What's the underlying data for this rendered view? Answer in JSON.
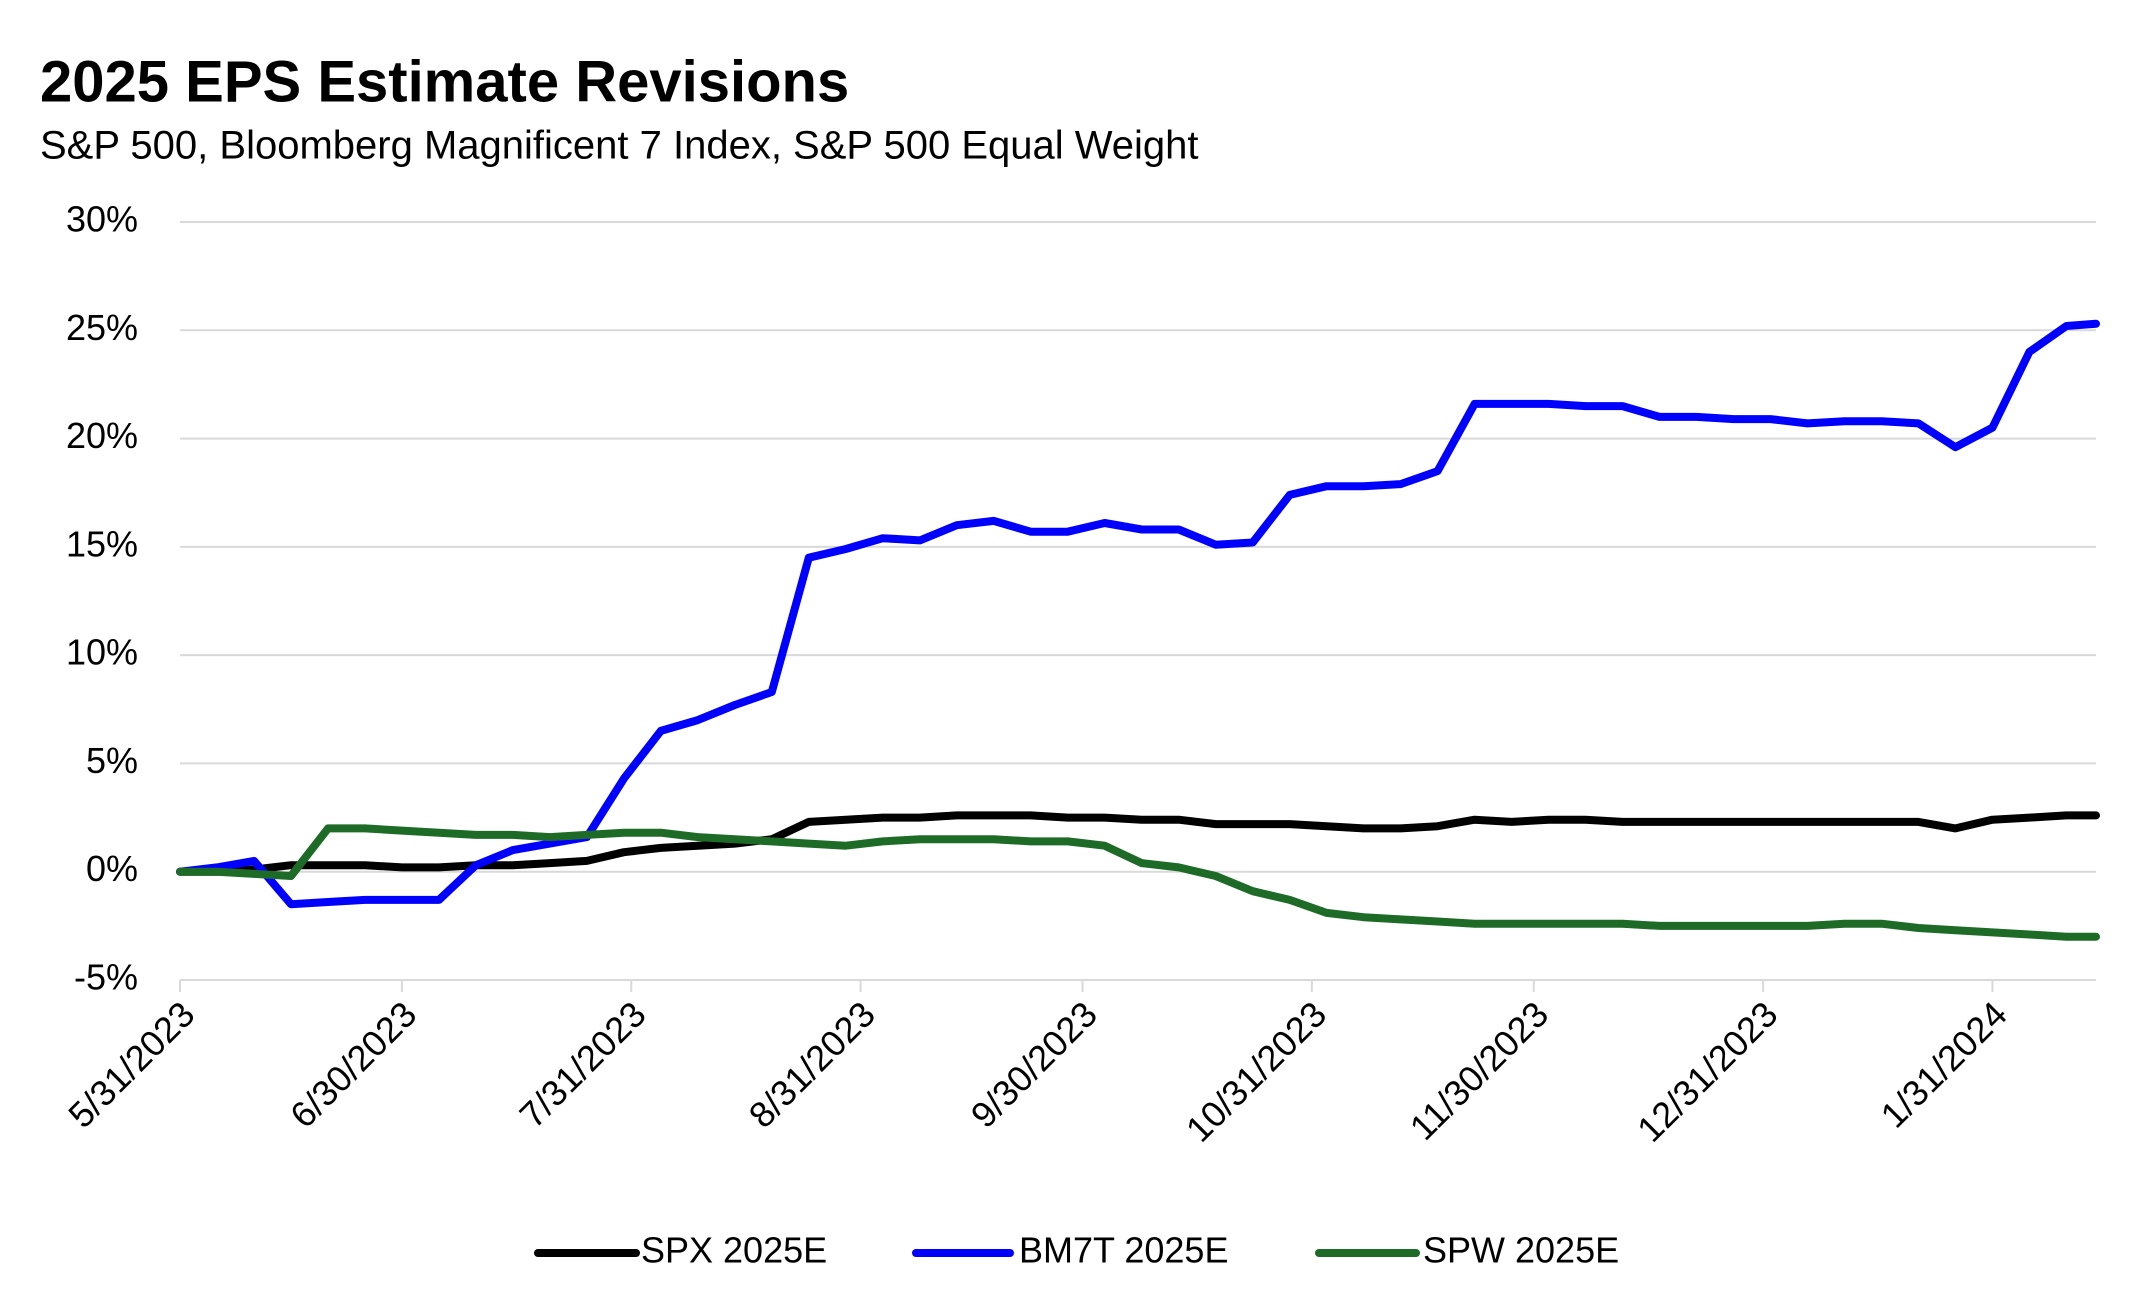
{
  "chart_data": {
    "type": "line",
    "title": "2025 EPS Estimate Revisions",
    "subtitle": "S&P 500, Bloomberg Magnificent 7 Index, S&P 500 Equal Weight",
    "x": [
      "5/31/2023",
      "6/5/2023",
      "6/10/2023",
      "6/15/2023",
      "6/20/2023",
      "6/25/2023",
      "6/30/2023",
      "7/5/2023",
      "7/10/2023",
      "7/15/2023",
      "7/20/2023",
      "7/25/2023",
      "7/30/2023",
      "8/4/2023",
      "8/9/2023",
      "8/14/2023",
      "8/19/2023",
      "8/24/2023",
      "8/29/2023",
      "9/3/2023",
      "9/8/2023",
      "9/13/2023",
      "9/18/2023",
      "9/23/2023",
      "9/28/2023",
      "10/3/2023",
      "10/8/2023",
      "10/13/2023",
      "10/18/2023",
      "10/23/2023",
      "10/28/2023",
      "11/2/2023",
      "11/7/2023",
      "11/12/2023",
      "11/17/2023",
      "11/22/2023",
      "11/27/2023",
      "12/2/2023",
      "12/7/2023",
      "12/12/2023",
      "12/17/2023",
      "12/22/2023",
      "12/27/2023",
      "1/1/2024",
      "1/6/2024",
      "1/11/2024",
      "1/16/2024",
      "1/21/2024",
      "1/26/2024",
      "1/31/2024",
      "2/5/2024",
      "2/10/2024",
      "2/14/2024"
    ],
    "series": [
      {
        "name": "SPX 2025E",
        "color": "#000000",
        "values": [
          0,
          0,
          0.1,
          0.3,
          0.3,
          0.3,
          0.2,
          0.2,
          0.3,
          0.3,
          0.4,
          0.5,
          0.9,
          1.1,
          1.2,
          1.3,
          1.5,
          2.3,
          2.4,
          2.5,
          2.5,
          2.6,
          2.6,
          2.6,
          2.5,
          2.5,
          2.4,
          2.4,
          2.2,
          2.2,
          2.2,
          2.1,
          2.0,
          2.0,
          2.1,
          2.4,
          2.3,
          2.4,
          2.4,
          2.3,
          2.3,
          2.3,
          2.3,
          2.3,
          2.3,
          2.3,
          2.3,
          2.3,
          2.0,
          2.4,
          2.5,
          2.6,
          2.6
        ]
      },
      {
        "name": "BM7T 2025E",
        "color": "#0000ff",
        "values": [
          0,
          0.2,
          0.5,
          -1.5,
          -1.4,
          -1.3,
          -1.3,
          -1.3,
          0.3,
          1.0,
          1.3,
          1.6,
          4.3,
          6.5,
          7.0,
          7.7,
          8.3,
          14.5,
          14.9,
          15.4,
          15.3,
          16.0,
          16.2,
          15.7,
          15.7,
          16.1,
          15.8,
          15.8,
          15.1,
          15.2,
          17.4,
          17.8,
          17.8,
          17.9,
          18.5,
          21.6,
          21.6,
          21.6,
          21.5,
          21.5,
          21.0,
          21.0,
          20.9,
          20.9,
          20.7,
          20.8,
          20.8,
          20.7,
          19.6,
          20.5,
          24.0,
          25.2,
          25.3
        ]
      },
      {
        "name": "SPW 2025E",
        "color": "#1e6b28",
        "values": [
          0,
          0,
          -0.1,
          -0.2,
          2.0,
          2.0,
          1.9,
          1.8,
          1.7,
          1.7,
          1.6,
          1.7,
          1.8,
          1.8,
          1.6,
          1.5,
          1.4,
          1.3,
          1.2,
          1.4,
          1.5,
          1.5,
          1.5,
          1.4,
          1.4,
          1.2,
          0.4,
          0.2,
          -0.2,
          -0.9,
          -1.3,
          -1.9,
          -2.1,
          -2.2,
          -2.3,
          -2.4,
          -2.4,
          -2.4,
          -2.4,
          -2.4,
          -2.5,
          -2.5,
          -2.5,
          -2.5,
          -2.5,
          -2.4,
          -2.4,
          -2.6,
          -2.7,
          -2.8,
          -2.9,
          -3.0,
          -3.0
        ]
      }
    ],
    "xlim": [
      "5/31/2023",
      "2/14/2024"
    ],
    "xticks": [
      "5/31/2023",
      "6/30/2023",
      "7/31/2023",
      "8/31/2023",
      "9/30/2023",
      "10/31/2023",
      "11/30/2023",
      "12/31/2023",
      "1/31/2024"
    ],
    "ylim": [
      -5,
      30
    ],
    "yticks": [
      {
        "value": -5,
        "label": "-5%"
      },
      {
        "value": 0,
        "label": "0%"
      },
      {
        "value": 5,
        "label": "5%"
      },
      {
        "value": 10,
        "label": "10%"
      },
      {
        "value": 15,
        "label": "15%"
      },
      {
        "value": 20,
        "label": "20%"
      },
      {
        "value": 25,
        "label": "25%"
      },
      {
        "value": 30,
        "label": "30%"
      }
    ],
    "grid": true,
    "legend": "bottom"
  }
}
